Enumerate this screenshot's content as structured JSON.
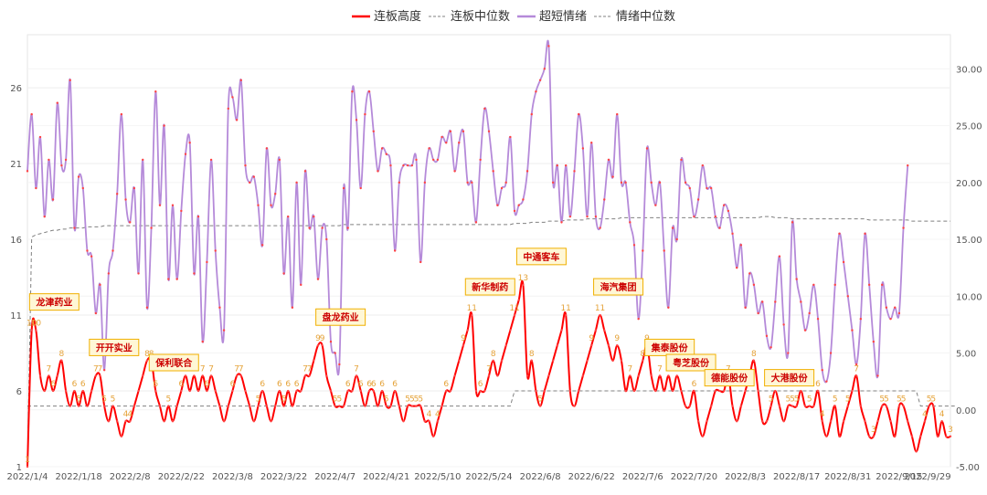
{
  "chart_data": {
    "type": "line",
    "legend": {
      "placement": "top-center",
      "items": [
        {
          "label": "连板高度",
          "color": "#ff0000",
          "style": "solid"
        },
        {
          "label": "连板中位数",
          "color": "#808080",
          "style": "dashed"
        },
        {
          "label": "超短情绪",
          "color": "#b58ad9",
          "style": "solid"
        },
        {
          "label": "情绪中位数",
          "color": "#808080",
          "style": "dashed"
        }
      ]
    },
    "x_axis": {
      "ticks": [
        "2022/1/4",
        "2022/1/18",
        "2022/2/8",
        "2022/2/22",
        "2022/3/8",
        "2022/3/22",
        "2022/4/7",
        "2022/4/21",
        "2022/5/10",
        "2022/5/24",
        "2022/6/8",
        "2022/6/22",
        "2022/7/6",
        "2022/7/20",
        "2022/8/3",
        "2022/8/17",
        "2022/8/31",
        "2022/9/15",
        "2022/9/29"
      ]
    },
    "y_left": {
      "min": 1,
      "max": 29.5,
      "ticks": [
        1,
        6,
        11,
        16,
        21,
        26
      ]
    },
    "y_right": {
      "min": -5,
      "max": 33,
      "ticks": [
        "-5.00",
        "0.00",
        "5.00",
        "10.00",
        "15.00",
        "20.00",
        "25.00",
        "30.00"
      ]
    },
    "grid": "horizontal",
    "series": [
      {
        "name": "连板高度",
        "axis": "left",
        "color": "#ff0000",
        "values": [
          1,
          10,
          10,
          7,
          6,
          7,
          6,
          7,
          8,
          6,
          5,
          6,
          5,
          6,
          5,
          6,
          7,
          7,
          5,
          4,
          5,
          4,
          3,
          4,
          4,
          5,
          6,
          7,
          8,
          8,
          6,
          5,
          4,
          5,
          4,
          5,
          6,
          7,
          6,
          7,
          6,
          7,
          6,
          7,
          6,
          5,
          4,
          5,
          6,
          7,
          7,
          6,
          5,
          4,
          5,
          6,
          5,
          4,
          5,
          6,
          5,
          6,
          5,
          6,
          6,
          7,
          7,
          8,
          9,
          9,
          7,
          6,
          5,
          5,
          5,
          6,
          6,
          7,
          6,
          5,
          6,
          6,
          5,
          6,
          5,
          5,
          6,
          5,
          4,
          5,
          5,
          5,
          5,
          4,
          4,
          3,
          4,
          5,
          6,
          6,
          7,
          8,
          9,
          10,
          11,
          6,
          6,
          6,
          7,
          8,
          7,
          8,
          9,
          10,
          11,
          12,
          13,
          7,
          8,
          6,
          5,
          6,
          7,
          8,
          9,
          10,
          11,
          6,
          5,
          6,
          7,
          8,
          9,
          10,
          11,
          10,
          9,
          8,
          9,
          8,
          6,
          7,
          6,
          7,
          8,
          9,
          7,
          6,
          7,
          6,
          7,
          6,
          7,
          6,
          5,
          5,
          6,
          4,
          3,
          4,
          5,
          6,
          6,
          6,
          7,
          5,
          4,
          5,
          6,
          7,
          8,
          6,
          4,
          4,
          5,
          6,
          5,
          4,
          5,
          5,
          5,
          6,
          5,
          5,
          5,
          6,
          4,
          3,
          4,
          5,
          3,
          4,
          5,
          6,
          7,
          5,
          4,
          3,
          3,
          4,
          5,
          5,
          4,
          3,
          5,
          5,
          4,
          3,
          2,
          3,
          4,
          5,
          5,
          3,
          4,
          3,
          3
        ]
      },
      {
        "name": "连板中位数",
        "axis": "left",
        "color": "#808080",
        "values": [
          5,
          5,
          5,
          5,
          5,
          5,
          5,
          5,
          5,
          5,
          5,
          5,
          5,
          5,
          5,
          5,
          5,
          5,
          5,
          5,
          5,
          5,
          5,
          5,
          5,
          5,
          5,
          5,
          5,
          5,
          5,
          5,
          5,
          5,
          5,
          5,
          5,
          5,
          5,
          5,
          5,
          5,
          5,
          5,
          5,
          5,
          5,
          5,
          5,
          5,
          5,
          5,
          5,
          5,
          5,
          5,
          5,
          5,
          5,
          5,
          5,
          5,
          5,
          5,
          5,
          5,
          5,
          5,
          5,
          5,
          5,
          5,
          5,
          5,
          5,
          5,
          5,
          5,
          5,
          5,
          5,
          5,
          5,
          5,
          5,
          5,
          5,
          5,
          5,
          5,
          5,
          5,
          5,
          5,
          5,
          5,
          5,
          5,
          5,
          5,
          5,
          5,
          5,
          5,
          5,
          5,
          5,
          5,
          5,
          5,
          5,
          5,
          5,
          5,
          6,
          6,
          6,
          6,
          6,
          6,
          6,
          6,
          6,
          6,
          6,
          6,
          6,
          6,
          6,
          6,
          6,
          6,
          6,
          6,
          6,
          6,
          6,
          6,
          6,
          6,
          6,
          6,
          6,
          6,
          6,
          6,
          6,
          6,
          6,
          6,
          6,
          6,
          6,
          6,
          6,
          6,
          6,
          6,
          6,
          6,
          6,
          6,
          6,
          6,
          6,
          6,
          6,
          6,
          6,
          6,
          6,
          6,
          6,
          6,
          6,
          6,
          6,
          6,
          6,
          6,
          6,
          6,
          6,
          6,
          6,
          6,
          6,
          6,
          6,
          6,
          6,
          6,
          6,
          6,
          6,
          6,
          6,
          6,
          6,
          6,
          6,
          6,
          6,
          6,
          6,
          6,
          6,
          6,
          6,
          5,
          5,
          5,
          5,
          5,
          5,
          5,
          5,
          5
        ]
      },
      {
        "name": "超短情绪",
        "axis": "right",
        "color": "#b58ad9",
        "values": [
          21,
          26,
          19.5,
          24,
          17,
          22,
          18.5,
          27,
          21.5,
          22,
          29,
          16,
          20.5,
          19.5,
          14,
          13.5,
          8.5,
          11,
          3.5,
          12,
          14,
          19,
          26,
          18.5,
          16.5,
          19.5,
          12,
          22,
          9,
          16,
          28,
          18,
          25,
          11.5,
          18,
          11.5,
          17.5,
          22.5,
          23.5,
          12,
          17,
          6,
          13,
          22,
          14,
          9,
          7,
          26.5,
          27.5,
          25.5,
          29,
          21.5,
          20,
          20.5,
          18,
          14.5,
          23,
          18,
          19,
          22,
          12,
          17,
          9,
          20,
          11,
          21,
          16,
          17,
          11.5,
          16,
          15,
          6,
          5,
          4,
          19.5,
          16,
          28,
          25.5,
          19.5,
          26,
          28,
          24.5,
          21,
          23,
          22.5,
          21.5,
          14,
          20,
          21.5,
          21.5,
          21.5,
          22,
          13,
          20,
          23,
          22,
          22,
          24,
          23.5,
          24.5,
          21,
          23.5,
          24.5,
          20,
          20,
          16.5,
          22,
          26.5,
          24.5,
          21,
          18,
          19.5,
          20,
          24,
          17.5,
          18,
          18.5,
          21,
          26,
          28,
          29,
          30,
          32,
          20,
          21.5,
          16.5,
          21.5,
          17,
          21,
          26,
          23,
          17,
          23.5,
          17,
          16,
          18.5,
          22,
          20.5,
          26,
          20,
          20,
          16.5,
          14.5,
          8,
          14,
          23,
          20,
          18,
          20,
          14,
          9,
          16,
          15,
          22,
          20,
          19.5,
          17,
          18.5,
          21.5,
          19.5,
          19.5,
          17,
          16,
          18,
          17.5,
          15.5,
          12.5,
          14.5,
          9,
          12,
          11,
          8.5,
          9.5,
          6.5,
          5.5,
          9.5,
          13.5,
          7.5,
          5,
          16.5,
          11.5,
          9.5,
          7,
          8.5,
          11,
          8,
          3.5,
          2.5,
          5,
          11,
          15.5,
          13,
          10,
          7,
          4,
          8,
          15.5,
          11,
          6,
          3,
          11,
          9,
          8,
          9,
          8.5,
          16,
          21.5
        ]
      },
      {
        "name": "情绪中位数",
        "axis": "right",
        "color": "#808080",
        "values": [
          -5,
          15.2,
          15.4,
          15.5,
          15.6,
          15.7,
          15.8,
          15.8,
          15.9,
          15.9,
          16.0,
          16.0,
          16.0,
          16.0,
          16.1,
          16.1,
          16.1,
          16.1,
          16.2,
          16.2,
          16.2,
          16.2,
          16.2,
          16.2,
          16.2,
          16.2,
          16.2,
          16.2,
          16.2,
          16.2,
          16.2,
          16.2,
          16.2,
          16.2,
          16.2,
          16.2,
          16.2,
          16.2,
          16.2,
          16.2,
          16.2,
          16.2,
          16.2,
          16.2,
          16.2,
          16.2,
          16.2,
          16.2,
          16.2,
          16.2,
          16.2,
          16.2,
          16.2,
          16.2,
          16.2,
          16.2,
          16.2,
          16.2,
          16.2,
          16.2,
          16.2,
          16.2,
          16.2,
          16.2,
          16.2,
          16.2,
          16.2,
          16.2,
          16.2,
          16.2,
          16.2,
          16.2,
          16.2,
          16.2,
          16.3,
          16.3,
          16.3,
          16.3,
          16.3,
          16.3,
          16.3,
          16.3,
          16.3,
          16.3,
          16.3,
          16.3,
          16.3,
          16.3,
          16.3,
          16.3,
          16.3,
          16.3,
          16.3,
          16.3,
          16.3,
          16.3,
          16.3,
          16.3,
          16.3,
          16.3,
          16.3,
          16.3,
          16.3,
          16.3,
          16.3,
          16.3,
          16.3,
          16.3,
          16.3,
          16.3,
          16.3,
          16.3,
          16.3,
          16.3,
          16.4,
          16.4,
          16.4,
          16.4,
          16.5,
          16.5,
          16.5,
          16.5,
          16.6,
          16.6,
          16.6,
          16.6,
          16.7,
          16.7,
          16.7,
          16.7,
          16.7,
          16.8,
          16.8,
          16.8,
          16.8,
          16.8,
          16.8,
          16.8,
          16.8,
          16.9,
          16.9,
          16.9,
          16.9,
          16.9,
          16.9,
          16.9,
          16.9,
          16.9,
          16.9,
          16.9,
          16.9,
          16.9,
          16.9,
          16.9,
          16.9,
          16.9,
          16.9,
          16.9,
          16.9,
          16.9,
          16.9,
          16.9,
          16.9,
          16.9,
          16.9,
          16.9,
          16.9,
          16.9,
          16.9,
          16.9,
          16.9,
          16.9,
          17.0,
          17.0,
          17.0,
          16.9,
          16.9,
          16.9,
          16.9,
          16.8,
          16.8,
          16.8,
          16.8,
          16.8,
          16.8,
          16.8,
          16.8,
          16.8,
          16.8,
          16.8,
          16.8,
          16.8,
          16.8,
          16.8,
          16.8,
          16.8,
          16.8,
          16.7,
          16.7,
          16.7,
          16.7,
          16.7,
          16.7,
          16.7,
          16.7,
          16.7,
          16.7,
          16.6,
          16.6,
          16.6,
          16.6,
          16.6,
          16.6,
          16.6,
          16.6,
          16.6,
          16.6
        ]
      }
    ],
    "annotations": [
      {
        "label": "龙津药业",
        "index": 2
      },
      {
        "label": "开开实业",
        "index": 16
      },
      {
        "label": "保利联合",
        "index": 30
      },
      {
        "label": "盘龙药业",
        "index": 69
      },
      {
        "label": "新华制药",
        "index": 104
      },
      {
        "label": "中通客车",
        "index": 116
      },
      {
        "label": "海汽集团",
        "index": 134
      },
      {
        "label": "集泰股份",
        "index": 146
      },
      {
        "label": "粤芝股份",
        "index": 151
      },
      {
        "label": "德能股份",
        "index": 160
      },
      {
        "label": "大港股份",
        "index": 174
      }
    ]
  }
}
